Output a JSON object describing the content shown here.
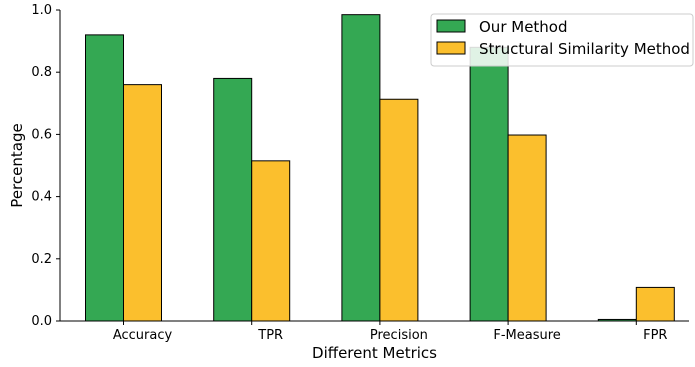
{
  "chart_data": {
    "type": "bar",
    "title": "",
    "xlabel": "Different Metrics",
    "ylabel": "Percentage",
    "ylim": [
      0,
      1.0
    ],
    "yticks": [
      "0.0",
      "0.2",
      "0.4",
      "0.6",
      "0.8",
      "1.0"
    ],
    "categories": [
      "Accuracy",
      "TPR",
      "Precision",
      "F-Measure",
      "FPR"
    ],
    "series": [
      {
        "name": "Our Method",
        "color": "#34a853",
        "values": [
          0.92,
          0.78,
          0.985,
          0.88,
          0.005
        ]
      },
      {
        "name": "Structural Similarity Method",
        "color": "#fbbf2d",
        "values": [
          0.76,
          0.515,
          0.713,
          0.598,
          0.108
        ]
      }
    ],
    "grid": false,
    "legend_position": "top-right"
  }
}
